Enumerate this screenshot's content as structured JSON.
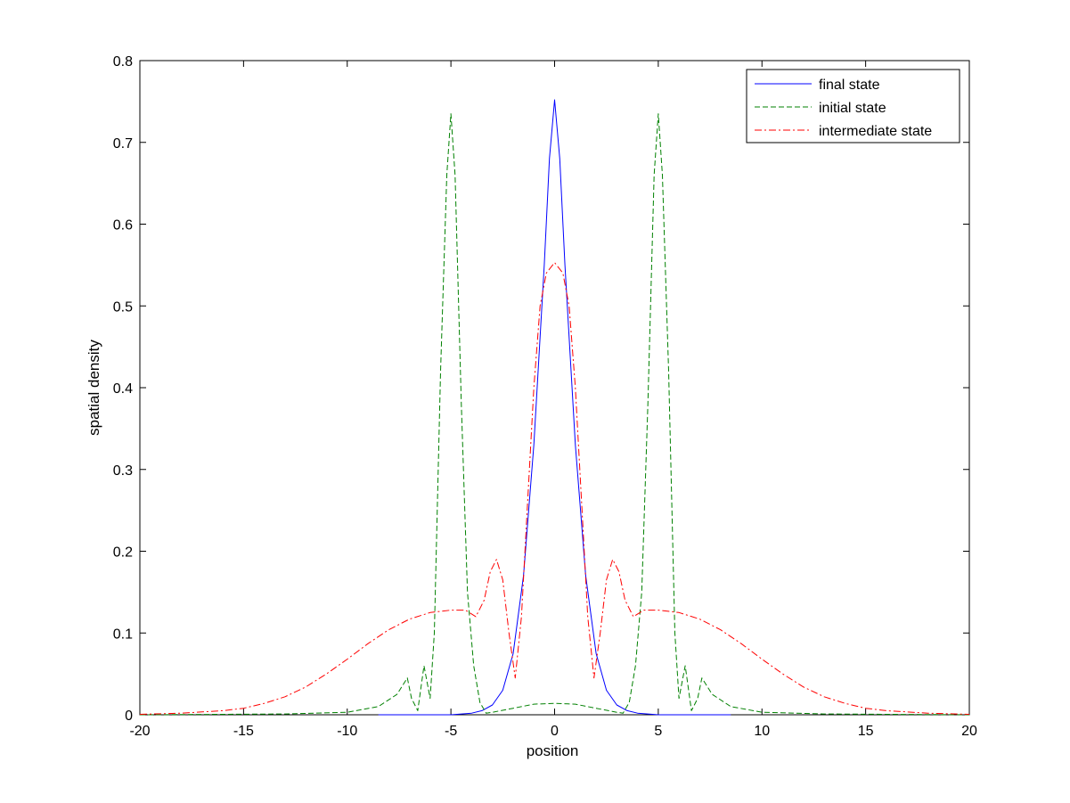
{
  "chart_data": {
    "type": "line",
    "title": "",
    "xlabel": "position",
    "ylabel": "spatial density",
    "xlim": [
      -20,
      20
    ],
    "ylim": [
      0,
      0.8
    ],
    "x_ticks": [
      -20,
      -15,
      -10,
      -5,
      0,
      5,
      10,
      15,
      20
    ],
    "y_ticks": [
      0,
      0.1,
      0.2,
      0.3,
      0.4,
      0.5,
      0.6,
      0.7,
      0.8
    ],
    "grid": false,
    "legend_position": "top-right",
    "series": [
      {
        "name": "final state",
        "color": "#0000ff",
        "dash": "solid",
        "x": [
          -8.5,
          -5,
          -4,
          -3.5,
          -3,
          -2.5,
          -2,
          -1.5,
          -1,
          -0.5,
          -0.25,
          0,
          0.25,
          0.5,
          1,
          1.5,
          2,
          2.5,
          3,
          3.5,
          4,
          5,
          8.5
        ],
        "y": [
          0,
          0,
          0.002,
          0.005,
          0.012,
          0.03,
          0.075,
          0.17,
          0.33,
          0.55,
          0.68,
          0.752,
          0.68,
          0.55,
          0.33,
          0.17,
          0.075,
          0.03,
          0.012,
          0.005,
          0.002,
          0,
          0
        ]
      },
      {
        "name": "initial state",
        "color": "#008000",
        "dash": "dashed",
        "x": [
          -20,
          -13,
          -10,
          -8.5,
          -7.6,
          -7.1,
          -6.9,
          -6.6,
          -6.3,
          -6.0,
          -5.8,
          -5.5,
          -5.2,
          -5.0,
          -4.8,
          -4.5,
          -4.2,
          -3.9,
          -3.6,
          -3.3,
          -3.0,
          -2,
          -1,
          0,
          1,
          2,
          3.0,
          3.3,
          3.6,
          3.9,
          4.2,
          4.5,
          4.8,
          5.0,
          5.2,
          5.5,
          5.8,
          6.0,
          6.3,
          6.6,
          6.9,
          7.1,
          7.6,
          8.5,
          10,
          13,
          20
        ],
        "y": [
          0,
          0.001,
          0.003,
          0.01,
          0.025,
          0.045,
          0.02,
          0.005,
          0.06,
          0.02,
          0.1,
          0.42,
          0.66,
          0.735,
          0.66,
          0.38,
          0.15,
          0.06,
          0.015,
          0.002,
          0.003,
          0.008,
          0.013,
          0.014,
          0.013,
          0.008,
          0.003,
          0.002,
          0.015,
          0.06,
          0.15,
          0.38,
          0.66,
          0.735,
          0.66,
          0.42,
          0.1,
          0.02,
          0.06,
          0.005,
          0.02,
          0.045,
          0.025,
          0.01,
          0.003,
          0.001,
          0
        ]
      },
      {
        "name": "intermediate state",
        "color": "#ff0000",
        "dash": "dash-dot",
        "x": [
          -20,
          -18,
          -16,
          -15,
          -14,
          -13,
          -12,
          -11,
          -10,
          -9,
          -8,
          -7,
          -6,
          -5,
          -4.3,
          -3.8,
          -3.4,
          -3.1,
          -2.8,
          -2.5,
          -2.2,
          -1.9,
          -1.6,
          -1.3,
          -1,
          -0.7,
          -0.4,
          0,
          0.4,
          0.7,
          1,
          1.3,
          1.6,
          1.9,
          2.2,
          2.5,
          2.8,
          3.1,
          3.4,
          3.8,
          4.3,
          5,
          6,
          7,
          8,
          9,
          10,
          11,
          12,
          13,
          14,
          15,
          16,
          18,
          20
        ],
        "y": [
          0.0005,
          0.002,
          0.005,
          0.008,
          0.014,
          0.022,
          0.034,
          0.05,
          0.068,
          0.087,
          0.104,
          0.117,
          0.125,
          0.128,
          0.128,
          0.12,
          0.14,
          0.175,
          0.19,
          0.165,
          0.1,
          0.045,
          0.12,
          0.26,
          0.4,
          0.5,
          0.54,
          0.553,
          0.54,
          0.5,
          0.4,
          0.26,
          0.12,
          0.045,
          0.1,
          0.165,
          0.19,
          0.175,
          0.14,
          0.12,
          0.128,
          0.128,
          0.125,
          0.117,
          0.104,
          0.087,
          0.068,
          0.05,
          0.034,
          0.022,
          0.014,
          0.008,
          0.005,
          0.002,
          0.0005
        ]
      }
    ]
  }
}
